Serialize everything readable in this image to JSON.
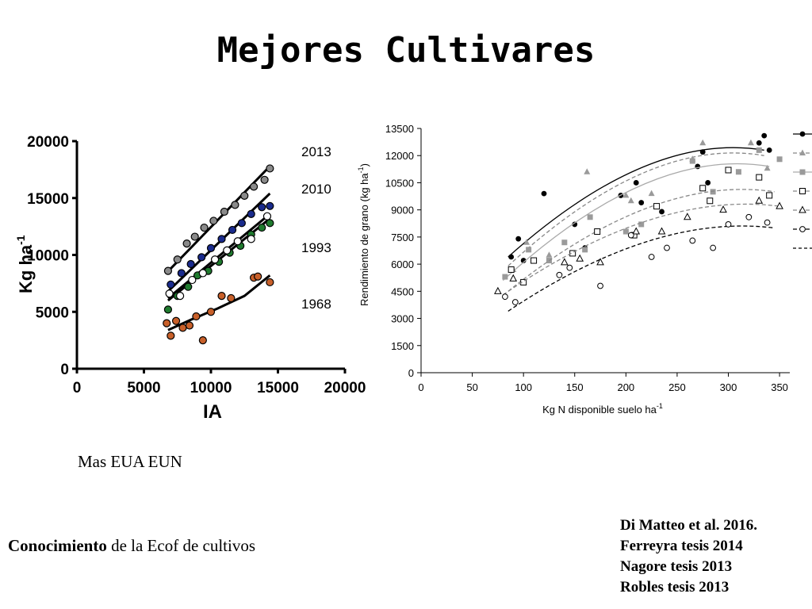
{
  "title": "Mejores Cultivares",
  "caption_left": "Mas EUA  EUN",
  "caption_bottom_bold": "Conocimiento",
  "caption_bottom_rest": " de la Ecof de cultivos",
  "references": [
    "Di Matteo et al. 2016.",
    "Ferreyra tesis 2014",
    "Nagore tesis 2013",
    "Robles tesis  2013"
  ],
  "colors": {
    "navy": "#1a2b8c",
    "green": "#1f7a2e",
    "orange": "#c8602a",
    "gray": "#8a8a8a",
    "black": "#000000",
    "lightgray": "#9a9a9a"
  },
  "chart_data": [
    {
      "type": "scatter",
      "xlabel": "IA",
      "ylabel": "Kg ha-1",
      "xlim": [
        0,
        20000
      ],
      "ylim": [
        0,
        20000
      ],
      "xticks": [
        "0",
        "5000",
        "10000",
        "15000",
        "20000"
      ],
      "yticks": [
        "0",
        "5000",
        "10000",
        "15000",
        "20000"
      ],
      "series": [
        {
          "name": "2013",
          "color": "#8a8a8a",
          "line": [
            [
              7000,
              8800
            ],
            [
              14400,
              17800
            ]
          ],
          "x": [
            6800,
            7500,
            8200,
            8800,
            9500,
            10200,
            11000,
            11800,
            12500,
            13200,
            14000,
            14400
          ],
          "y": [
            8600,
            9600,
            11000,
            11600,
            12400,
            13000,
            13800,
            14400,
            15200,
            16000,
            16600,
            17600
          ]
        },
        {
          "name": "2010",
          "color": "#1a2b8c",
          "line": [
            [
              6800,
              6800
            ],
            [
              14400,
              15400
            ]
          ],
          "x": [
            7000,
            7800,
            8500,
            9300,
            10000,
            10800,
            11600,
            12300,
            13000,
            13800,
            14400
          ],
          "y": [
            7400,
            8400,
            9200,
            9800,
            10600,
            11400,
            12200,
            12800,
            13600,
            14200,
            14300
          ]
        },
        {
          "name": "1993",
          "color": "#1f7a2e",
          "line": [
            [
              6800,
              6000
            ],
            [
              14400,
              13200
            ]
          ],
          "x": [
            6800,
            7500,
            8300,
            9000,
            9800,
            10600,
            11400,
            12200,
            13000,
            13800,
            14400
          ],
          "y": [
            5200,
            6400,
            7200,
            8200,
            8600,
            9400,
            10200,
            10800,
            11800,
            12400,
            12800
          ]
        },
        {
          "name": "",
          "color": "#ffffff",
          "line": [
            [
              6800,
              6200
            ],
            [
              14400,
              13600
            ]
          ],
          "x": [
            6900,
            7700,
            8600,
            9400,
            10300,
            11200,
            12000,
            13000,
            14200
          ],
          "y": [
            6600,
            6400,
            7800,
            8400,
            9600,
            10400,
            11200,
            11400,
            13400
          ]
        },
        {
          "name": "1968",
          "color": "#c8602a",
          "line": [
            [
              6800,
              3400
            ],
            [
              8500,
              4300
            ],
            [
              10500,
              5300
            ],
            [
              12500,
              6400
            ],
            [
              14400,
              8200
            ]
          ],
          "x": [
            6700,
            7000,
            7400,
            7900,
            8400,
            8900,
            9400,
            10000,
            10800,
            11500,
            13200,
            13500,
            14400
          ],
          "y": [
            4000,
            2900,
            4200,
            3600,
            3800,
            4600,
            2500,
            5000,
            6400,
            6200,
            8000,
            8100,
            7600
          ]
        }
      ]
    },
    {
      "type": "scatter",
      "xlabel": "Kg N disponible suelo ha-1",
      "ylabel": "Rendimiento de grano (kg ha-1)",
      "xlim": [
        0,
        360
      ],
      "ylim": [
        0,
        13500
      ],
      "xticks": [
        "0",
        "50",
        "100",
        "150",
        "200",
        "250",
        "300",
        "350"
      ],
      "yticks": [
        "0",
        "1500",
        "3000",
        "4500",
        "6000",
        "7500",
        "9000",
        "10500",
        "12000",
        "13500"
      ],
      "series": [
        {
          "marker": "filled-circle",
          "curve": "solid-black",
          "fit": [
            85,
            6400,
            335,
            12300
          ],
          "x": [
            88,
            95,
            100,
            120,
            150,
            160,
            195,
            210,
            215,
            235,
            270,
            275,
            280,
            330,
            335,
            340
          ],
          "y": [
            6400,
            7400,
            6200,
            9900,
            8200,
            6900,
            9800,
            10500,
            9400,
            8900,
            11400,
            12200,
            10500,
            12700,
            13100,
            12300
          ]
        },
        {
          "marker": "filled-triangle",
          "curve": "dashed-gray",
          "fit": [
            85,
            5900,
            335,
            12000
          ],
          "x": [
            90,
            103,
            125,
            162,
            200,
            205,
            225,
            265,
            275,
            322,
            338
          ],
          "y": [
            5700,
            7200,
            6500,
            11100,
            9800,
            9500,
            9900,
            11800,
            12700,
            12700,
            11300
          ]
        },
        {
          "marker": "filled-square",
          "curve": "solid-lightgray",
          "fit": [
            80,
            5100,
            340,
            11400
          ],
          "x": [
            82,
            105,
            125,
            140,
            160,
            165,
            200,
            215,
            265,
            285,
            310,
            330,
            350
          ],
          "y": [
            5300,
            6800,
            6200,
            7200,
            6800,
            8600,
            7800,
            8200,
            11700,
            10000,
            11100,
            12300,
            11800
          ]
        },
        {
          "marker": "open-square",
          "curve": "dashed-gray",
          "fit": [
            85,
            4500,
            345,
            10000
          ],
          "x": [
            88,
            100,
            110,
            148,
            172,
            208,
            230,
            275,
            282,
            300,
            330,
            340
          ],
          "y": [
            5700,
            5000,
            6200,
            6600,
            7800,
            7600,
            9200,
            10200,
            9500,
            11200,
            10800,
            9800
          ]
        },
        {
          "marker": "open-triangle",
          "curve": "dashed-gray",
          "fit": [
            80,
            4300,
            350,
            9200
          ],
          "x": [
            75,
            90,
            140,
            155,
            175,
            210,
            235,
            260,
            295,
            330,
            350
          ],
          "y": [
            4500,
            5200,
            6100,
            6300,
            6100,
            7800,
            7800,
            8600,
            9000,
            9500,
            9200
          ]
        },
        {
          "marker": "open-circle",
          "curve": "dashed-black",
          "fit": [
            85,
            3400,
            345,
            8000
          ],
          "x": [
            82,
            92,
            135,
            145,
            175,
            205,
            225,
            240,
            265,
            285,
            300,
            320,
            338
          ],
          "y": [
            4200,
            3900,
            5400,
            5800,
            4800,
            7600,
            6400,
            6900,
            7300,
            6900,
            8200,
            8600,
            8300
          ]
        }
      ]
    }
  ],
  "labels_left": [
    "2013",
    "2010",
    "1993",
    "1968"
  ]
}
